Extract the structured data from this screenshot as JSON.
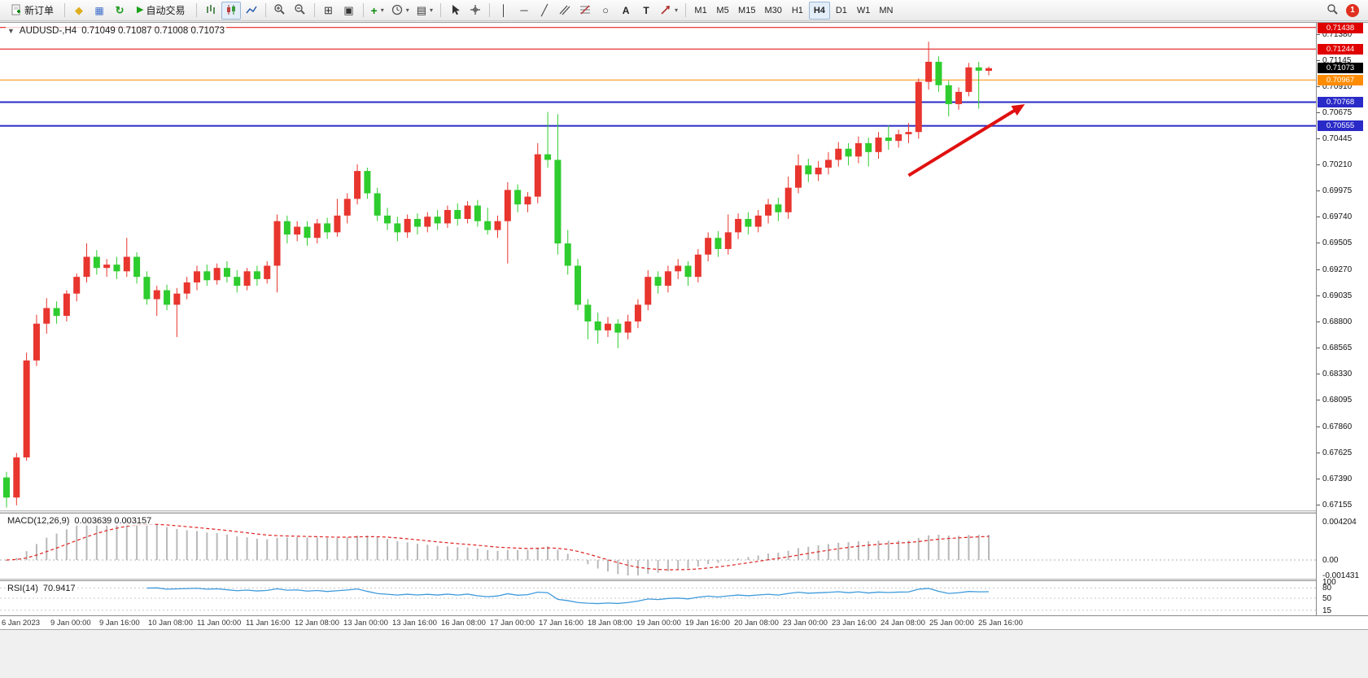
{
  "toolbar": {
    "new_order": "新订单",
    "autotrading": "自动交易",
    "timeframes": [
      "M1",
      "M5",
      "M15",
      "M30",
      "H1",
      "H4",
      "D1",
      "W1",
      "MN"
    ],
    "active_timeframe": "H4",
    "notification_count": "1"
  },
  "icons": {
    "dropdown": "▾",
    "collapse": "▼",
    "diamond": "◆",
    "grid": "▦",
    "refresh": "↻",
    "play": "▶",
    "tile": "⊞",
    "cascade": "▣",
    "indicator_plus": "+",
    "template": "▤",
    "vline": "│",
    "hline": "─",
    "trendline": "╱",
    "ellipse": "○",
    "text_tool": "A",
    "label_tool": "T"
  },
  "chart_window": {
    "title": "AUDUSD-,H4",
    "ohlc_quote": "0.71049 0.71087 0.71008 0.71073"
  },
  "chart_data": {
    "type": "candlestick",
    "symbol": "AUDUSD",
    "period": "H4",
    "colors": {
      "up": "#e8352e",
      "down": "#2ecc2e",
      "background": "#ffffff"
    },
    "price_scale_ticks": [
      "0.71380",
      "0.71145",
      "0.70910",
      "0.70675",
      "0.70445",
      "0.70210",
      "0.69975",
      "0.69740",
      "0.69505",
      "0.69270",
      "0.69035",
      "0.68800",
      "0.68565",
      "0.68330",
      "0.68095",
      "0.67860",
      "0.67625",
      "0.67390",
      "0.67155"
    ],
    "time_labels": [
      "6 Jan 2023",
      "9 Jan 00:00",
      "9 Jan 16:00",
      "10 Jan 08:00",
      "11 Jan 00:00",
      "11 Jan 16:00",
      "12 Jan 08:00",
      "13 Jan 00:00",
      "13 Jan 16:00",
      "16 Jan 08:00",
      "17 Jan 00:00",
      "17 Jan 16:00",
      "18 Jan 08:00",
      "19 Jan 00:00",
      "19 Jan 16:00",
      "20 Jan 08:00",
      "23 Jan 00:00",
      "23 Jan 16:00",
      "24 Jan 08:00",
      "25 Jan 00:00",
      "25 Jan 16:00"
    ],
    "candles": [
      [
        0.674,
        0.6745,
        0.6713,
        0.6722
      ],
      [
        0.6722,
        0.6762,
        0.6715,
        0.6758
      ],
      [
        0.6758,
        0.6852,
        0.6755,
        0.6845
      ],
      [
        0.6845,
        0.6886,
        0.684,
        0.6878
      ],
      [
        0.6878,
        0.6901,
        0.6869,
        0.6892
      ],
      [
        0.6892,
        0.6898,
        0.6878,
        0.6885
      ],
      [
        0.6885,
        0.6908,
        0.688,
        0.6905
      ],
      [
        0.6905,
        0.6923,
        0.6898,
        0.692
      ],
      [
        0.692,
        0.695,
        0.6915,
        0.6938
      ],
      [
        0.6938,
        0.6944,
        0.6922,
        0.6928
      ],
      [
        0.6928,
        0.6936,
        0.692,
        0.6931
      ],
      [
        0.6931,
        0.6938,
        0.6918,
        0.6925
      ],
      [
        0.6925,
        0.6955,
        0.692,
        0.6938
      ],
      [
        0.6938,
        0.6942,
        0.6914,
        0.692
      ],
      [
        0.692,
        0.6925,
        0.6895,
        0.69
      ],
      [
        0.69,
        0.6912,
        0.6885,
        0.6908
      ],
      [
        0.6908,
        0.6913,
        0.689,
        0.6895
      ],
      [
        0.6895,
        0.691,
        0.6866,
        0.6905
      ],
      [
        0.6905,
        0.692,
        0.69,
        0.6915
      ],
      [
        0.6915,
        0.693,
        0.6908,
        0.6925
      ],
      [
        0.6925,
        0.6931,
        0.6912,
        0.6917
      ],
      [
        0.6917,
        0.6932,
        0.6913,
        0.6928
      ],
      [
        0.6928,
        0.6934,
        0.6915,
        0.692
      ],
      [
        0.692,
        0.6926,
        0.6906,
        0.6912
      ],
      [
        0.6912,
        0.6928,
        0.6908,
        0.6925
      ],
      [
        0.6925,
        0.693,
        0.6912,
        0.6918
      ],
      [
        0.6918,
        0.6934,
        0.6914,
        0.693
      ],
      [
        0.693,
        0.6976,
        0.6906,
        0.697
      ],
      [
        0.697,
        0.6975,
        0.695,
        0.6958
      ],
      [
        0.6958,
        0.697,
        0.6952,
        0.6965
      ],
      [
        0.6965,
        0.697,
        0.6948,
        0.6955
      ],
      [
        0.6955,
        0.6972,
        0.695,
        0.6968
      ],
      [
        0.6968,
        0.6973,
        0.6954,
        0.696
      ],
      [
        0.696,
        0.699,
        0.6956,
        0.6975
      ],
      [
        0.6975,
        0.6995,
        0.6968,
        0.699
      ],
      [
        0.699,
        0.7021,
        0.6985,
        0.7015
      ],
      [
        0.7015,
        0.7018,
        0.699,
        0.6995
      ],
      [
        0.6995,
        0.7,
        0.697,
        0.6975
      ],
      [
        0.6975,
        0.6982,
        0.6962,
        0.6968
      ],
      [
        0.6968,
        0.6974,
        0.6952,
        0.696
      ],
      [
        0.696,
        0.6976,
        0.6955,
        0.6972
      ],
      [
        0.6972,
        0.6977,
        0.6958,
        0.6965
      ],
      [
        0.6965,
        0.6978,
        0.696,
        0.6974
      ],
      [
        0.6974,
        0.698,
        0.6962,
        0.6968
      ],
      [
        0.6968,
        0.6984,
        0.6964,
        0.698
      ],
      [
        0.698,
        0.6986,
        0.6966,
        0.6972
      ],
      [
        0.6972,
        0.6988,
        0.6968,
        0.6984
      ],
      [
        0.6984,
        0.6989,
        0.6965,
        0.697
      ],
      [
        0.697,
        0.6982,
        0.6958,
        0.6962
      ],
      [
        0.6962,
        0.6975,
        0.6955,
        0.697
      ],
      [
        0.697,
        0.7005,
        0.6932,
        0.6998
      ],
      [
        0.6998,
        0.7003,
        0.6978,
        0.6985
      ],
      [
        0.6985,
        0.6996,
        0.6978,
        0.6992
      ],
      [
        0.6992,
        0.704,
        0.6986,
        0.703
      ],
      [
        0.703,
        0.7068,
        0.7018,
        0.7025
      ],
      [
        0.7025,
        0.7066,
        0.694,
        0.695
      ],
      [
        0.695,
        0.6962,
        0.6922,
        0.693
      ],
      [
        0.693,
        0.6936,
        0.689,
        0.6895
      ],
      [
        0.6895,
        0.69,
        0.6864,
        0.688
      ],
      [
        0.688,
        0.6888,
        0.686,
        0.6872
      ],
      [
        0.6872,
        0.6884,
        0.6866,
        0.6878
      ],
      [
        0.6878,
        0.6882,
        0.6856,
        0.687
      ],
      [
        0.687,
        0.6886,
        0.6864,
        0.688
      ],
      [
        0.688,
        0.69,
        0.6874,
        0.6895
      ],
      [
        0.6895,
        0.6926,
        0.689,
        0.692
      ],
      [
        0.692,
        0.6925,
        0.6905,
        0.6912
      ],
      [
        0.6912,
        0.693,
        0.6906,
        0.6925
      ],
      [
        0.6925,
        0.6936,
        0.6918,
        0.693
      ],
      [
        0.693,
        0.6934,
        0.6912,
        0.692
      ],
      [
        0.692,
        0.6945,
        0.6915,
        0.694
      ],
      [
        0.694,
        0.696,
        0.6934,
        0.6955
      ],
      [
        0.6955,
        0.6961,
        0.6938,
        0.6945
      ],
      [
        0.6945,
        0.6976,
        0.694,
        0.696
      ],
      [
        0.696,
        0.6977,
        0.6954,
        0.6972
      ],
      [
        0.6972,
        0.6978,
        0.6958,
        0.6965
      ],
      [
        0.6965,
        0.698,
        0.696,
        0.6975
      ],
      [
        0.6975,
        0.699,
        0.6968,
        0.6985
      ],
      [
        0.6985,
        0.6991,
        0.697,
        0.6978
      ],
      [
        0.6978,
        0.701,
        0.6972,
        0.7
      ],
      [
        0.7,
        0.703,
        0.6995,
        0.702
      ],
      [
        0.702,
        0.7026,
        0.7005,
        0.7012
      ],
      [
        0.7012,
        0.7024,
        0.7006,
        0.7018
      ],
      [
        0.7018,
        0.7032,
        0.7012,
        0.7025
      ],
      [
        0.7025,
        0.7041,
        0.7019,
        0.7035
      ],
      [
        0.7035,
        0.704,
        0.702,
        0.7028
      ],
      [
        0.7028,
        0.7046,
        0.7022,
        0.704
      ],
      [
        0.704,
        0.7045,
        0.7019,
        0.7032
      ],
      [
        0.7032,
        0.705,
        0.7026,
        0.7045
      ],
      [
        0.7045,
        0.7056,
        0.7034,
        0.7042
      ],
      [
        0.7042,
        0.7052,
        0.7036,
        0.7048
      ],
      [
        0.7048,
        0.7058,
        0.704,
        0.705
      ],
      [
        0.705,
        0.7098,
        0.7044,
        0.7095
      ],
      [
        0.7095,
        0.7131,
        0.7088,
        0.7113
      ],
      [
        0.7113,
        0.7118,
        0.7086,
        0.7092
      ],
      [
        0.7092,
        0.7096,
        0.7064,
        0.7075
      ],
      [
        0.7075,
        0.709,
        0.707,
        0.7086
      ],
      [
        0.7086,
        0.7112,
        0.7082,
        0.7108
      ],
      [
        0.7108,
        0.7113,
        0.7071,
        0.7105
      ],
      [
        0.71049,
        0.71087,
        0.71008,
        0.71073
      ]
    ],
    "hlines": [
      {
        "price": 0.71438,
        "label": "0.71438",
        "color": "#e00000",
        "width": 1
      },
      {
        "price": 0.71244,
        "label": "0.71244",
        "color": "#e00000",
        "width": 1
      },
      {
        "price": 0.70967,
        "label": "0.70967",
        "color": "#ff8c00",
        "width": 1
      },
      {
        "price": 0.70768,
        "label": "0.70768",
        "color": "#2a2ac8",
        "width": 2
      },
      {
        "price": 0.70555,
        "label": "0.70555",
        "color": "#2a2ac8",
        "width": 2
      }
    ],
    "current_price": {
      "value": 0.71073,
      "label": "0.71073",
      "badge_color": "#000000"
    },
    "trend_arrow": {
      "from_bar": 90,
      "from_price": 0.7011,
      "to_bar": 101.6,
      "to_price": 0.7075,
      "color": "#e01010",
      "width": 4
    },
    "indicators": {
      "macd": {
        "name": "MACD(12,26,9)",
        "values": "0.003639 0.003157",
        "scale": [
          "0.004204",
          "0.00",
          "-0.001431"
        ],
        "histogram_color": "#b9b9b9",
        "signal_color": "#e02020"
      },
      "rsi": {
        "name": "RSI(14)",
        "value": "70.9417",
        "scale": [
          "100",
          "80",
          "50",
          "15"
        ],
        "line_color": "#3e9bdc"
      }
    }
  }
}
